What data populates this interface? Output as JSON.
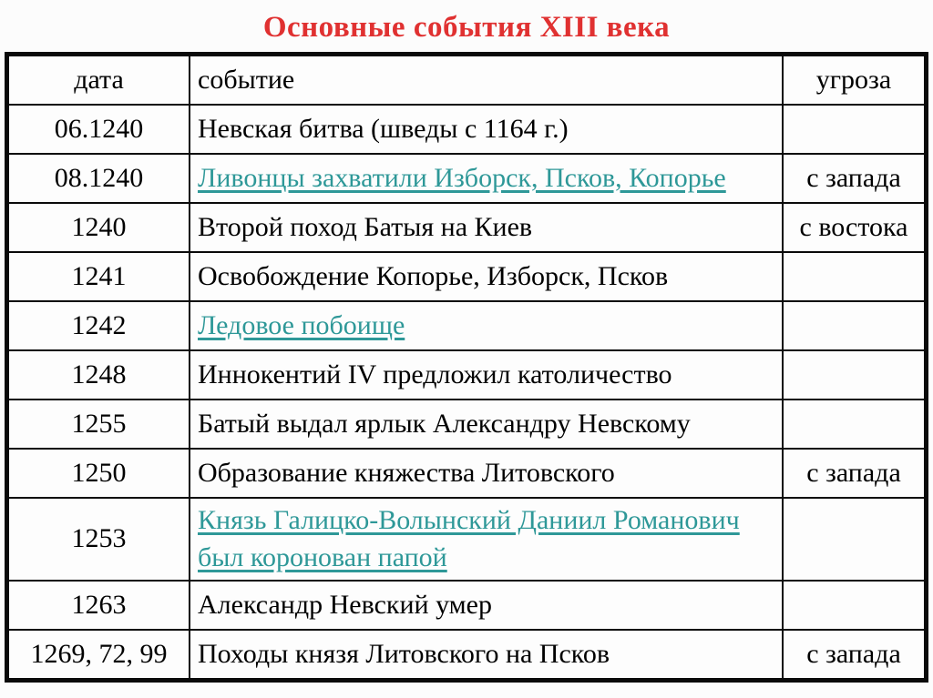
{
  "title": "Основные события XIII  века",
  "colors": {
    "title_red": "#e03131",
    "navy": "#1c1c99",
    "green": "#1f8b1f",
    "teal_link": "#2e9898",
    "text_black": "#000000",
    "border_black": "#0a0a0a"
  },
  "table": {
    "headers": [
      "дата",
      "событие",
      "угроза"
    ],
    "rows": [
      {
        "date": "06.1240",
        "date_style": "black",
        "event": "Невская битва (шведы с 1164 г.)",
        "event_style": "black",
        "event_link": false,
        "threat": "",
        "threat_style": "black"
      },
      {
        "date": "08.1240",
        "date_style": "navy",
        "event": "Ливонцы захватили Изборск, Псков, Копорье",
        "event_style": "black",
        "event_link": true,
        "threat": "с запада",
        "threat_style": "navy"
      },
      {
        "date": "1240",
        "date_style": "green",
        "event": "Второй поход Батыя на Киев",
        "event_style": "green",
        "event_link": false,
        "threat": "с востока",
        "threat_style": "green"
      },
      {
        "date": "1241",
        "date_style": "black",
        "event": "Освобождение Копорье, Изборск, Псков",
        "event_style": "black",
        "event_link": false,
        "threat": "",
        "threat_style": "black"
      },
      {
        "date": "1242",
        "date_style": "black",
        "event": "Ледовое побоище",
        "event_style": "black",
        "event_link": true,
        "threat": "",
        "threat_style": "black"
      },
      {
        "date": "1248",
        "date_style": "black",
        "event": "Иннокентий IV предложил католичество",
        "event_style": "black",
        "event_link": false,
        "threat": "",
        "threat_style": "black"
      },
      {
        "date": "1255",
        "date_style": "black",
        "event": "Батый выдал ярлык Александру Невскому",
        "event_style": "black",
        "event_link": false,
        "threat": "",
        "threat_style": "black"
      },
      {
        "date": "1250",
        "date_style": "navy",
        "event": "Образование княжества Литовского",
        "event_style": "navy",
        "event_link": false,
        "threat": "с запада",
        "threat_style": "navy"
      },
      {
        "date": "1253",
        "date_style": "black",
        "event": "Князь Галицко-Волынский Даниил Романович был коронован папой",
        "event_style": "black",
        "event_link": true,
        "threat": "",
        "threat_style": "black"
      },
      {
        "date": "1263",
        "date_style": "black",
        "event": "Александр Невский умер",
        "event_style": "black",
        "event_link": false,
        "threat": "",
        "threat_style": "black"
      },
      {
        "date": "1269, 72, 99",
        "date_style": "black",
        "event": "Походы князя Литовского на Псков",
        "event_style": "navy",
        "event_link": false,
        "threat": "с запада",
        "threat_style": "navy"
      }
    ]
  }
}
